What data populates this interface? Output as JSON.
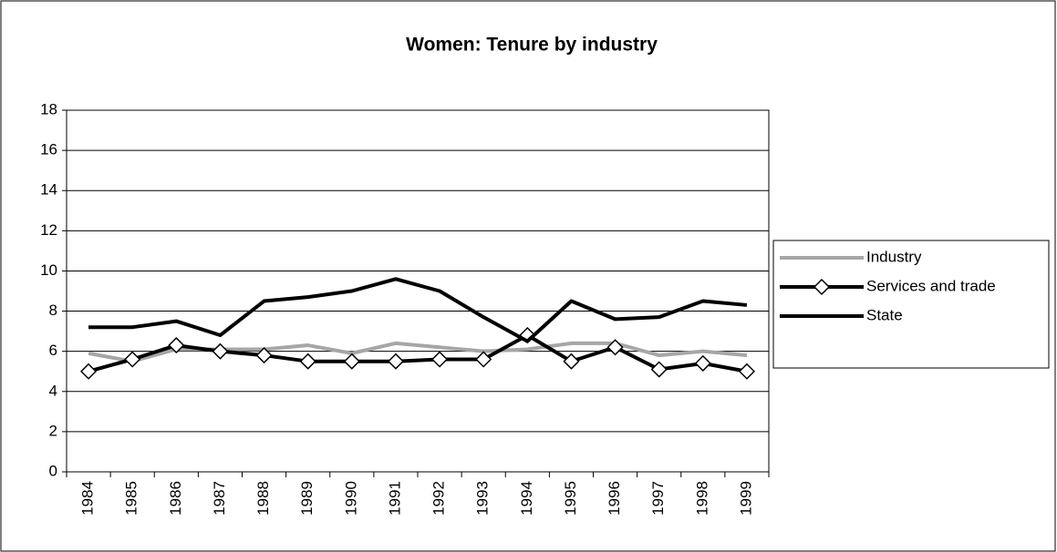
{
  "chart_data": {
    "type": "line",
    "title": "Women: Tenure by industry",
    "categories": [
      "1984",
      "1985",
      "1986",
      "1987",
      "1988",
      "1989",
      "1990",
      "1991",
      "1992",
      "1993",
      "1994",
      "1995",
      "1996",
      "1997",
      "1998",
      "1999"
    ],
    "series": [
      {
        "name": "Industry",
        "color": "#a6a6a6",
        "marker": "none",
        "values": [
          5.9,
          5.5,
          6.1,
          6.1,
          6.1,
          6.3,
          5.9,
          6.4,
          6.2,
          6.0,
          6.1,
          6.4,
          6.4,
          5.8,
          6.0,
          5.8
        ]
      },
      {
        "name": "Services and trade",
        "color": "#000000",
        "marker": "diamond",
        "values": [
          5.0,
          5.6,
          6.3,
          6.0,
          5.8,
          5.5,
          5.5,
          5.5,
          5.6,
          5.6,
          6.8,
          5.5,
          6.2,
          5.1,
          5.4,
          5.0
        ]
      },
      {
        "name": "State",
        "color": "#000000",
        "marker": "none",
        "values": [
          7.2,
          7.2,
          7.5,
          6.8,
          8.5,
          8.7,
          9.0,
          9.6,
          9.0,
          7.7,
          6.5,
          8.5,
          7.6,
          7.7,
          8.5,
          8.3
        ]
      }
    ],
    "ylim": [
      0,
      18
    ],
    "yticks": [
      0,
      2,
      4,
      6,
      8,
      10,
      12,
      14,
      16,
      18
    ],
    "grid": true,
    "legend": "right"
  }
}
